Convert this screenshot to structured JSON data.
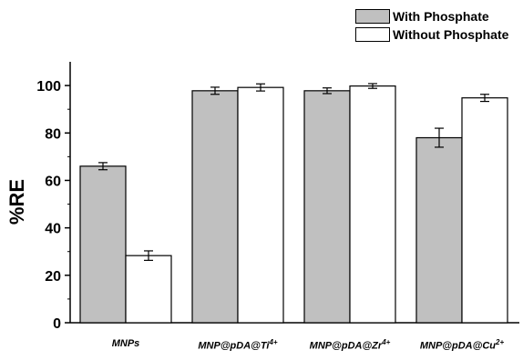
{
  "chart_data": {
    "type": "bar",
    "categories": [
      {
        "base": "MNPs",
        "sup": ""
      },
      {
        "base": "MNP@pDA@Ti",
        "sup": "4+"
      },
      {
        "base": "MNP@pDA@Zr",
        "sup": "4+"
      },
      {
        "base": "MNP@pDA@Cu",
        "sup": "2+"
      }
    ],
    "series": [
      {
        "name": "With Phosphate",
        "color": "#c0c0c0",
        "values": [
          66,
          97.8,
          97.8,
          78
        ],
        "errors": [
          1.5,
          1.5,
          1.2,
          4
        ]
      },
      {
        "name": "Without Phosphate",
        "color": "#ffffff",
        "values": [
          28.3,
          99.2,
          99.8,
          94.8
        ],
        "errors": [
          2,
          1.5,
          1,
          1.5
        ]
      }
    ],
    "ylabel": "%RE",
    "xlabel": "",
    "ylim": [
      0,
      110
    ],
    "yticks": [
      0,
      20,
      40,
      60,
      80,
      100
    ],
    "grid": false,
    "legend_position": "top-right"
  }
}
